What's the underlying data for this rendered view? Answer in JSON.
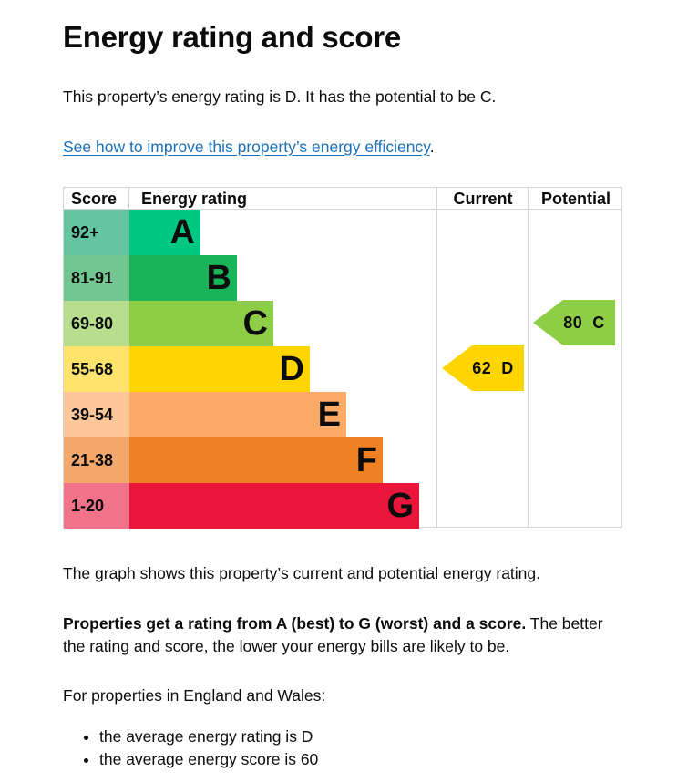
{
  "page": {
    "title": "Energy rating and score",
    "intro": "This property’s energy rating is D. It has the potential to be C.",
    "improve_link": "See how to improve this property’s energy efficiency",
    "improve_link_suffix": ".",
    "graph_description": "The graph shows this property’s current and potential energy rating.",
    "ratings_bold": "Properties get a rating from A (best) to G (worst) and a score.",
    "ratings_rest": " The better the rating and score, the lower your energy bills are likely to be.",
    "region_intro": "For properties in England and Wales:",
    "averages": [
      "the average energy rating is D",
      "the average energy score is 60"
    ]
  },
  "table": {
    "headers": {
      "score": "Score",
      "rating": "Energy rating",
      "current": "Current",
      "potential": "Potential"
    },
    "bands": [
      {
        "score": "92+",
        "letter": "A",
        "color": "#00c781",
        "score_bg": "#63c5a1"
      },
      {
        "score": "81-91",
        "letter": "B",
        "color": "#19b459",
        "score_bg": "#72c68f"
      },
      {
        "score": "69-80",
        "letter": "C",
        "color": "#8dce46",
        "score_bg": "#b6de8c"
      },
      {
        "score": "55-68",
        "letter": "D",
        "color": "#ffd500",
        "score_bg": "#ffe36b"
      },
      {
        "score": "39-54",
        "letter": "E",
        "color": "#fcaa65",
        "score_bg": "#fdc79a"
      },
      {
        "score": "21-38",
        "letter": "F",
        "color": "#ef8023",
        "score_bg": "#f5a86b"
      },
      {
        "score": "1-20",
        "letter": "G",
        "color": "#e9153b",
        "score_bg": "#f2728a"
      }
    ],
    "current": {
      "score": "62",
      "letter": "D",
      "label": "62  D",
      "color": "#ffd500"
    },
    "potential": {
      "score": "80",
      "letter": "C",
      "label": "80  C",
      "color": "#8dce46"
    }
  },
  "chart_data": {
    "type": "bar",
    "title": "Energy rating and score",
    "categories": [
      "A",
      "B",
      "C",
      "D",
      "E",
      "F",
      "G"
    ],
    "score_ranges": [
      "92+",
      "81-91",
      "69-80",
      "55-68",
      "39-54",
      "21-38",
      "1-20"
    ],
    "series": [
      {
        "name": "Current",
        "value": 62,
        "band": "D"
      },
      {
        "name": "Potential",
        "value": 80,
        "band": "C"
      }
    ],
    "columns": [
      "Score",
      "Energy rating",
      "Current",
      "Potential"
    ]
  }
}
